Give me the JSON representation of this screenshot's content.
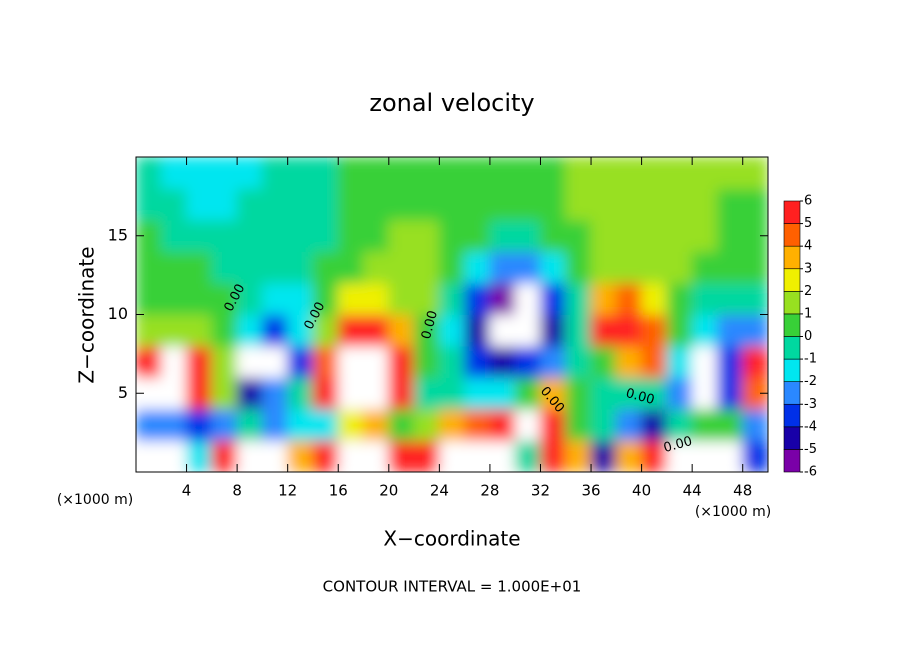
{
  "chart_data": {
    "type": "contour",
    "title": "zonal velocity",
    "xlabel": "X−coordinate",
    "ylabel": "Z−coordinate",
    "x_unit": "(×1000 m)",
    "annotation": "CONTOUR INTERVAL = 1.000E+01",
    "contour_labels": [
      "0.00",
      "0.00",
      "0.00",
      "0.00",
      "0.00",
      "0.00"
    ],
    "xlim": [
      0,
      50
    ],
    "xticks": [
      4,
      8,
      12,
      16,
      20,
      24,
      28,
      32,
      36,
      40,
      44,
      48
    ],
    "ylim": [
      0,
      20
    ],
    "yticks": [
      5,
      10,
      15
    ],
    "x": [
      1,
      3,
      5,
      7,
      9,
      11,
      13,
      15,
      17,
      19,
      21,
      23,
      25,
      27,
      29,
      31,
      33,
      35,
      37,
      39,
      41,
      43,
      45,
      47,
      49
    ],
    "y": [
      1,
      3,
      5,
      7,
      9,
      11,
      13,
      15,
      17,
      19
    ],
    "z": [
      [
        7,
        7,
        -2,
        5,
        7,
        7,
        3,
        6,
        7,
        7,
        5,
        6,
        7,
        7,
        7,
        -1,
        5,
        3,
        -5,
        3,
        6,
        7,
        7,
        7,
        -4
      ],
      [
        -3,
        -3,
        -4,
        -3,
        -1,
        -3,
        -2,
        -2,
        2,
        3,
        0,
        1,
        3,
        4,
        5,
        7,
        6,
        0,
        -1,
        -3,
        -5,
        -1,
        0,
        0,
        -3
      ],
      [
        7,
        7,
        5,
        1,
        -5,
        -3,
        -1,
        5,
        7,
        7,
        5,
        -1,
        -1,
        -2,
        -2,
        0,
        3,
        0,
        -1,
        -1,
        -1,
        -3,
        -7,
        -4,
        4
      ],
      [
        6,
        7,
        5,
        1,
        -7,
        -7,
        -4,
        4,
        7,
        7,
        5,
        0,
        -1,
        -4,
        -5,
        -4,
        -3,
        -1,
        0,
        3,
        4,
        -2,
        -7,
        -4,
        5
      ],
      [
        1,
        1,
        1,
        0,
        -2,
        -4,
        -2,
        1,
        5,
        6,
        3,
        0,
        -2,
        -5,
        -7,
        -7,
        -5,
        -1,
        5,
        6,
        4,
        0,
        -2,
        -3,
        -3
      ],
      [
        0,
        0,
        0,
        0,
        -1,
        -2,
        -2,
        0,
        2,
        2,
        1,
        1,
        -1,
        -4,
        -6,
        -7,
        -4,
        -1,
        3,
        4,
        2,
        0,
        -1,
        -1,
        -1
      ],
      [
        0,
        0,
        0,
        -1,
        -1,
        -1,
        -1,
        0,
        0,
        1,
        1,
        1,
        0,
        -2,
        -3,
        -3,
        -2,
        0,
        1,
        1,
        1,
        1,
        0,
        0,
        0
      ],
      [
        0,
        -1,
        -1,
        -1,
        -1,
        -1,
        -1,
        -1,
        0,
        0,
        1,
        1,
        0,
        0,
        -1,
        -1,
        0,
        0,
        1,
        1,
        1,
        1,
        1,
        0,
        0
      ],
      [
        -1,
        -1,
        -2,
        -2,
        -1,
        -1,
        -1,
        -1,
        0,
        0,
        0,
        0,
        0,
        0,
        0,
        0,
        0,
        1,
        1,
        1,
        1,
        1,
        1,
        0,
        0
      ],
      [
        -1,
        -2,
        -2,
        -2,
        -2,
        -1,
        -1,
        -1,
        0,
        0,
        0,
        0,
        0,
        0,
        0,
        0,
        0,
        1,
        1,
        1,
        1,
        1,
        1,
        1,
        1
      ]
    ],
    "colorbar": {
      "ticks": [
        -6,
        -5,
        -4,
        -3,
        -2,
        -1,
        0,
        1,
        2,
        3,
        4,
        5,
        6
      ],
      "colors": [
        "#7a00a8",
        "#1800a8",
        "#0030e8",
        "#2a88ff",
        "#00e6f0",
        "#00d8a0",
        "#38d038",
        "#98e020",
        "#f0f000",
        "#ffb000",
        "#ff6000",
        "#ff2020"
      ]
    }
  }
}
